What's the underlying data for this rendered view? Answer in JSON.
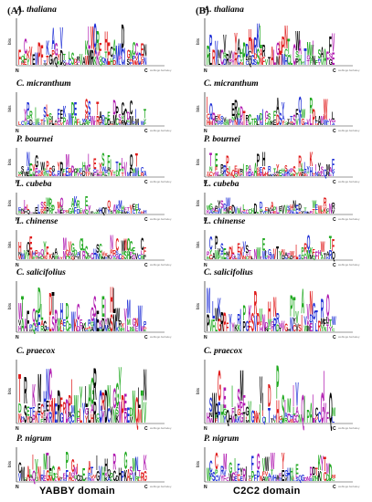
{
  "panels": {
    "left_label": "(A)",
    "right_label": "(B)"
  },
  "species": [
    "A. thaliana",
    "C. micranthum",
    "P. bournei",
    "L. cubeba",
    "L. chinense",
    "C. salicifolius",
    "C. praecox",
    "P. nigrum"
  ],
  "footers": {
    "left": "YABBY domain",
    "right": "C2C2 domain"
  },
  "axis": {
    "y_label": "bits",
    "n_term": "N",
    "c_term": "C",
    "credit": "weblogo.berkeley.edu"
  },
  "colors": {
    "green": "#22aa22",
    "blue": "#1f2fd6",
    "red": "#e01a1a",
    "black": "#000000",
    "purple": "#b01ab0"
  }
}
